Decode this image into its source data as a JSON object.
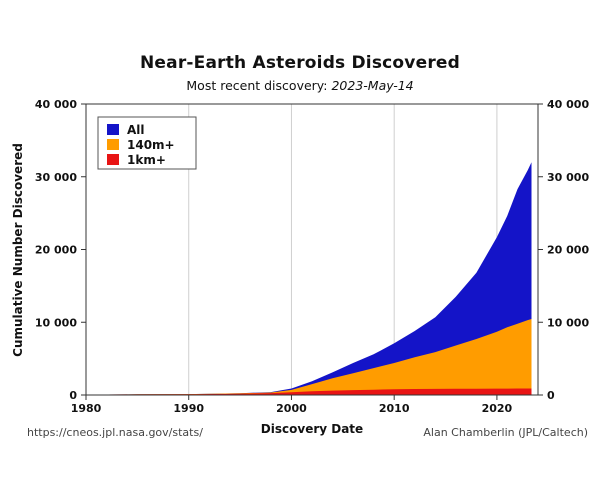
{
  "header": {
    "title": "Near-Earth Asteroids Discovered",
    "subtitle_prefix": "Most recent discovery: ",
    "subtitle_date": "2023-May-14"
  },
  "footer": {
    "source": "https://cneos.jpl.nasa.gov/stats/",
    "credit": "Alan Chamberlin (JPL/Caltech)"
  },
  "chart_data": {
    "type": "area",
    "title": "Near-Earth Asteroids Discovered",
    "subtitle": "Most recent discovery: 2023-May-14",
    "xlabel": "Discovery Date",
    "ylabel": "Cumulative Number Discovered",
    "xlim": [
      1980,
      2024
    ],
    "ylim": [
      0,
      40000
    ],
    "xticks": [
      1980,
      1990,
      2000,
      2010,
      2020
    ],
    "yticks": [
      0,
      10000,
      20000,
      30000,
      40000
    ],
    "ytick_labels": [
      "0",
      "10 000",
      "20 000",
      "30 000",
      "40 000"
    ],
    "grid": "vertical",
    "legend_position": "top-left",
    "x": [
      1980,
      1985,
      1990,
      1995,
      1998,
      2000,
      2002,
      2004,
      2006,
      2008,
      2010,
      2012,
      2014,
      2016,
      2018,
      2020,
      2021,
      2022,
      2023,
      2023.37
    ],
    "series": [
      {
        "name": "All",
        "color": "#1414c8",
        "values": [
          60,
          90,
          130,
          250,
          400,
          900,
          1900,
          3100,
          4400,
          5600,
          7100,
          8800,
          10700,
          13500,
          16800,
          21700,
          24600,
          28300,
          30900,
          32000
        ]
      },
      {
        "name": "140m+",
        "color": "#ff9c00",
        "values": [
          60,
          90,
          125,
          230,
          350,
          700,
          1500,
          2300,
          3000,
          3700,
          4400,
          5200,
          5900,
          6800,
          7700,
          8700,
          9300,
          9800,
          10300,
          10450
        ]
      },
      {
        "name": "1km+",
        "color": "#e81414",
        "values": [
          55,
          80,
          110,
          180,
          260,
          380,
          520,
          610,
          680,
          730,
          780,
          820,
          840,
          860,
          870,
          880,
          885,
          890,
          895,
          900
        ]
      }
    ]
  }
}
